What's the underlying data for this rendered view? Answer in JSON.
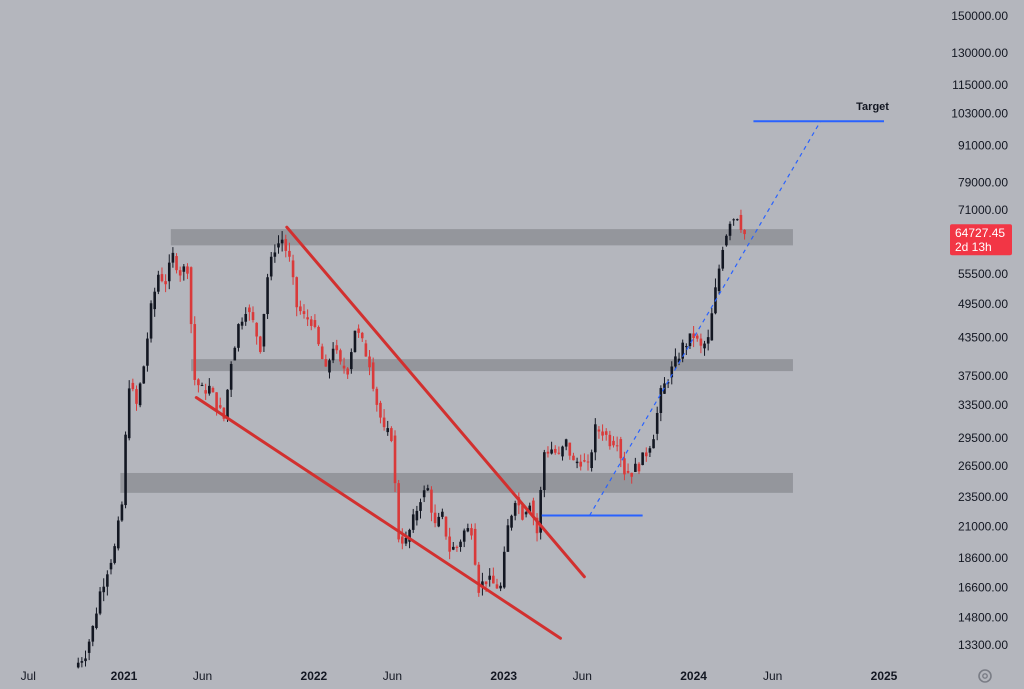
{
  "chart_data": {
    "type": "candlestick",
    "colors": {
      "background": "#b4b6bd",
      "up_candle": "#131722",
      "down_candle": "#d93a3a",
      "zone": "#8e9096",
      "wedge_line": "#d2302f",
      "target_line": "#2962ff",
      "price_badge": "#f23645"
    },
    "y_axis": {
      "scale": "log",
      "ticks": [
        "150000.00",
        "130000.00",
        "115000.00",
        "103000.00",
        "91000.00",
        "79000.00",
        "71000.00",
        "55500.00",
        "49500.00",
        "43500.00",
        "37500.00",
        "33500.00",
        "29500.00",
        "26500.00",
        "23500.00",
        "21000.00",
        "18600.00",
        "16600.00",
        "14800.00",
        "13300.00"
      ]
    },
    "x_axis": {
      "ticks": [
        {
          "label": "Jul",
          "date": "2020-07-01",
          "year": false
        },
        {
          "label": "2021",
          "date": "2021-01-01",
          "year": true
        },
        {
          "label": "Jun",
          "date": "2021-06-01",
          "year": false
        },
        {
          "label": "2022",
          "date": "2022-01-01",
          "year": true
        },
        {
          "label": "Jun",
          "date": "2022-06-01",
          "year": false
        },
        {
          "label": "2023",
          "date": "2023-01-01",
          "year": true
        },
        {
          "label": "Jun",
          "date": "2023-06-01",
          "year": false
        },
        {
          "label": "2024",
          "date": "2024-01-01",
          "year": true
        },
        {
          "label": "Jun",
          "date": "2024-06-01",
          "year": false
        },
        {
          "label": "2025",
          "date": "2025-01-01",
          "year": true
        }
      ]
    },
    "last_price": {
      "price": "64727.45",
      "countdown": "2d 13h",
      "value": 64727.45
    },
    "zones": [
      {
        "from": "2021-04-01",
        "to": "2024-07-10",
        "low": 62000,
        "high": 66000
      },
      {
        "from": "2021-05-10",
        "to": "2024-07-10",
        "low": 38200,
        "high": 40000
      },
      {
        "from": "2020-12-25",
        "to": "2024-07-10",
        "low": 23900,
        "high": 25800
      }
    ],
    "trendlines": [
      {
        "kind": "wedge-upper",
        "from": {
          "date": "2021-11-10",
          "price": 66500
        },
        "to": {
          "date": "2023-06-05",
          "price": 17300
        }
      },
      {
        "kind": "wedge-lower",
        "from": {
          "date": "2021-05-20",
          "price": 34500
        },
        "to": {
          "date": "2023-04-20",
          "price": 13650
        }
      },
      {
        "kind": "support-line",
        "from": {
          "date": "2023-03-15",
          "price": 21900
        },
        "to": {
          "date": "2023-09-25",
          "price": 21900
        }
      },
      {
        "kind": "projection-dashed",
        "from": {
          "date": "2023-06-15",
          "price": 21900
        },
        "to": {
          "date": "2024-09-01",
          "price": 100000
        }
      },
      {
        "kind": "target-line",
        "from": {
          "date": "2024-04-25",
          "price": 100000
        },
        "to": {
          "date": "2025-01-01",
          "price": 100000
        }
      }
    ],
    "annotations": [
      {
        "text": "Target",
        "date": "2024-12-10",
        "price": 104500
      }
    ],
    "weekly_close": [
      [
        "2020-09-28",
        12200
      ],
      [
        "2020-10-19",
        12900
      ],
      [
        "2020-11-02",
        14200
      ],
      [
        "2020-11-16",
        16300
      ],
      [
        "2020-11-30",
        17800
      ],
      [
        "2020-12-14",
        19300
      ],
      [
        "2020-12-28",
        22800
      ],
      [
        "2021-01-04",
        29500
      ],
      [
        "2021-01-11",
        36500
      ],
      [
        "2021-01-25",
        33500
      ],
      [
        "2021-02-08",
        39000
      ],
      [
        "2021-02-22",
        48500
      ],
      [
        "2021-03-08",
        55500
      ],
      [
        "2021-03-22",
        54000
      ],
      [
        "2021-04-05",
        59500
      ],
      [
        "2021-04-19",
        56000
      ],
      [
        "2021-05-03",
        57000
      ],
      [
        "2021-05-17",
        37000
      ],
      [
        "2021-05-31",
        35500
      ],
      [
        "2021-06-14",
        35800
      ],
      [
        "2021-06-28",
        33500
      ],
      [
        "2021-07-12",
        31800
      ],
      [
        "2021-07-26",
        39800
      ],
      [
        "2021-08-09",
        45500
      ],
      [
        "2021-08-23",
        48800
      ],
      [
        "2021-09-06",
        46000
      ],
      [
        "2021-09-20",
        42000
      ],
      [
        "2021-10-04",
        55000
      ],
      [
        "2021-10-18",
        61500
      ],
      [
        "2021-11-01",
        63500
      ],
      [
        "2021-11-15",
        58500
      ],
      [
        "2021-11-29",
        49000
      ],
      [
        "2021-12-13",
        47000
      ],
      [
        "2021-12-27",
        46500
      ],
      [
        "2022-01-10",
        42000
      ],
      [
        "2022-01-24",
        38000
      ],
      [
        "2022-02-07",
        42200
      ],
      [
        "2022-02-21",
        39000
      ],
      [
        "2022-03-07",
        38500
      ],
      [
        "2022-03-21",
        45000
      ],
      [
        "2022-04-04",
        42500
      ],
      [
        "2022-04-18",
        39500
      ],
      [
        "2022-05-02",
        33800
      ],
      [
        "2022-05-16",
        30200
      ],
      [
        "2022-05-30",
        29800
      ],
      [
        "2022-06-13",
        20200
      ],
      [
        "2022-06-27",
        19800
      ],
      [
        "2022-07-11",
        21500
      ],
      [
        "2022-07-25",
        23500
      ],
      [
        "2022-08-08",
        24200
      ],
      [
        "2022-08-22",
        21000
      ],
      [
        "2022-09-05",
        21800
      ],
      [
        "2022-09-19",
        19200
      ],
      [
        "2022-10-03",
        19400
      ],
      [
        "2022-10-17",
        20600
      ],
      [
        "2022-10-31",
        20800
      ],
      [
        "2022-11-14",
        16600
      ],
      [
        "2022-11-28",
        17100
      ],
      [
        "2022-12-12",
        16800
      ],
      [
        "2022-12-26",
        16600
      ],
      [
        "2023-01-09",
        20900
      ],
      [
        "2023-01-23",
        23500
      ],
      [
        "2023-02-06",
        22000
      ],
      [
        "2023-02-20",
        23200
      ],
      [
        "2023-03-06",
        20500
      ],
      [
        "2023-03-20",
        28000
      ],
      [
        "2023-04-03",
        28300
      ],
      [
        "2023-04-17",
        27500
      ],
      [
        "2023-05-01",
        29000
      ],
      [
        "2023-05-15",
        26800
      ],
      [
        "2023-05-29",
        27100
      ],
      [
        "2023-06-12",
        26300
      ],
      [
        "2023-06-26",
        30500
      ],
      [
        "2023-07-10",
        30300
      ],
      [
        "2023-07-24",
        29200
      ],
      [
        "2023-08-07",
        29400
      ],
      [
        "2023-08-21",
        26000
      ],
      [
        "2023-09-04",
        25900
      ],
      [
        "2023-09-18",
        26600
      ],
      [
        "2023-10-02",
        27900
      ],
      [
        "2023-10-16",
        30000
      ],
      [
        "2023-10-30",
        35000
      ],
      [
        "2023-11-13",
        37300
      ],
      [
        "2023-11-27",
        39500
      ],
      [
        "2023-12-11",
        42000
      ],
      [
        "2024-01-01",
        43800
      ],
      [
        "2024-01-15",
        41700
      ],
      [
        "2024-01-29",
        43000
      ],
      [
        "2024-02-12",
        52000
      ],
      [
        "2024-02-26",
        62000
      ],
      [
        "2024-03-11",
        68500
      ],
      [
        "2024-03-25",
        69700
      ],
      [
        "2024-04-08",
        64727
      ]
    ]
  }
}
